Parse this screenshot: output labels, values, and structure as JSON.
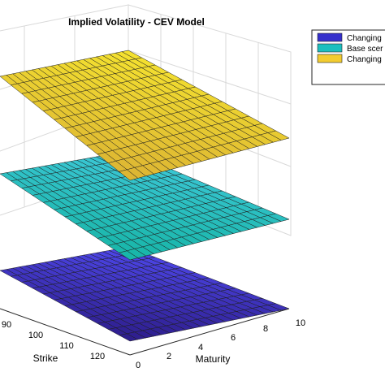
{
  "chart_data": {
    "type": "surface",
    "title": "Implied Volatility - CEV Model",
    "xlabel": "Strike",
    "ylabel": "Maturity",
    "x_ticks": [
      "90",
      "100",
      "110",
      "120"
    ],
    "y_ticks": [
      "0",
      "2",
      "4",
      "6",
      "8",
      "10"
    ],
    "grid": true,
    "legend_position": "top-right",
    "series": [
      {
        "name": "Changing",
        "color_low": "#2d1c8a",
        "color_high": "#4f49ee",
        "legend_color": "#3530cc"
      },
      {
        "name": "Base scer",
        "color_low": "#17b5a7",
        "color_high": "#3fc9da",
        "legend_color": "#1bbfbf"
      },
      {
        "name": "Changing",
        "color_low": "#dcb433",
        "color_high": "#f5e32f",
        "legend_color": "#f2cc30"
      }
    ]
  }
}
